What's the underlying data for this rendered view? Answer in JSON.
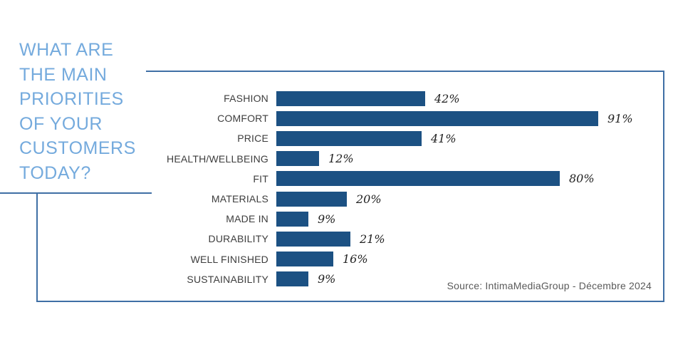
{
  "title": {
    "lines": [
      "WHAT ARE",
      "THE MAIN",
      "PRIORITIES",
      "OF YOUR",
      "CUSTOMERS",
      "TODAY?"
    ],
    "text": "WHAT ARE THE MAIN PRIORITIES OF YOUR CUSTOMERS TODAY?"
  },
  "source": "Source: IntimaMediaGroup - Décembre 2024",
  "colors": {
    "bar": "#1c5183",
    "title": "#74aadd",
    "frame": "#3f6fa5"
  },
  "chart_data": {
    "type": "bar",
    "orientation": "horizontal",
    "title": "WHAT ARE THE MAIN PRIORITIES OF YOUR CUSTOMERS TODAY?",
    "categories": [
      "FASHION",
      "COMFORT",
      "PRICE",
      "HEALTH/WELLBEING",
      "FIT",
      "MATERIALS",
      "MADE IN",
      "DURABILITY",
      "WELL FINISHED",
      "SUSTAINABILITY"
    ],
    "values": [
      42,
      91,
      41,
      12,
      80,
      20,
      9,
      21,
      16,
      9
    ],
    "value_suffix": "%",
    "xlim": [
      0,
      100
    ],
    "grid": false,
    "legend": "none",
    "value_labels_position": "right-of-bar",
    "source": "Source: IntimaMediaGroup - Décembre 2024"
  }
}
